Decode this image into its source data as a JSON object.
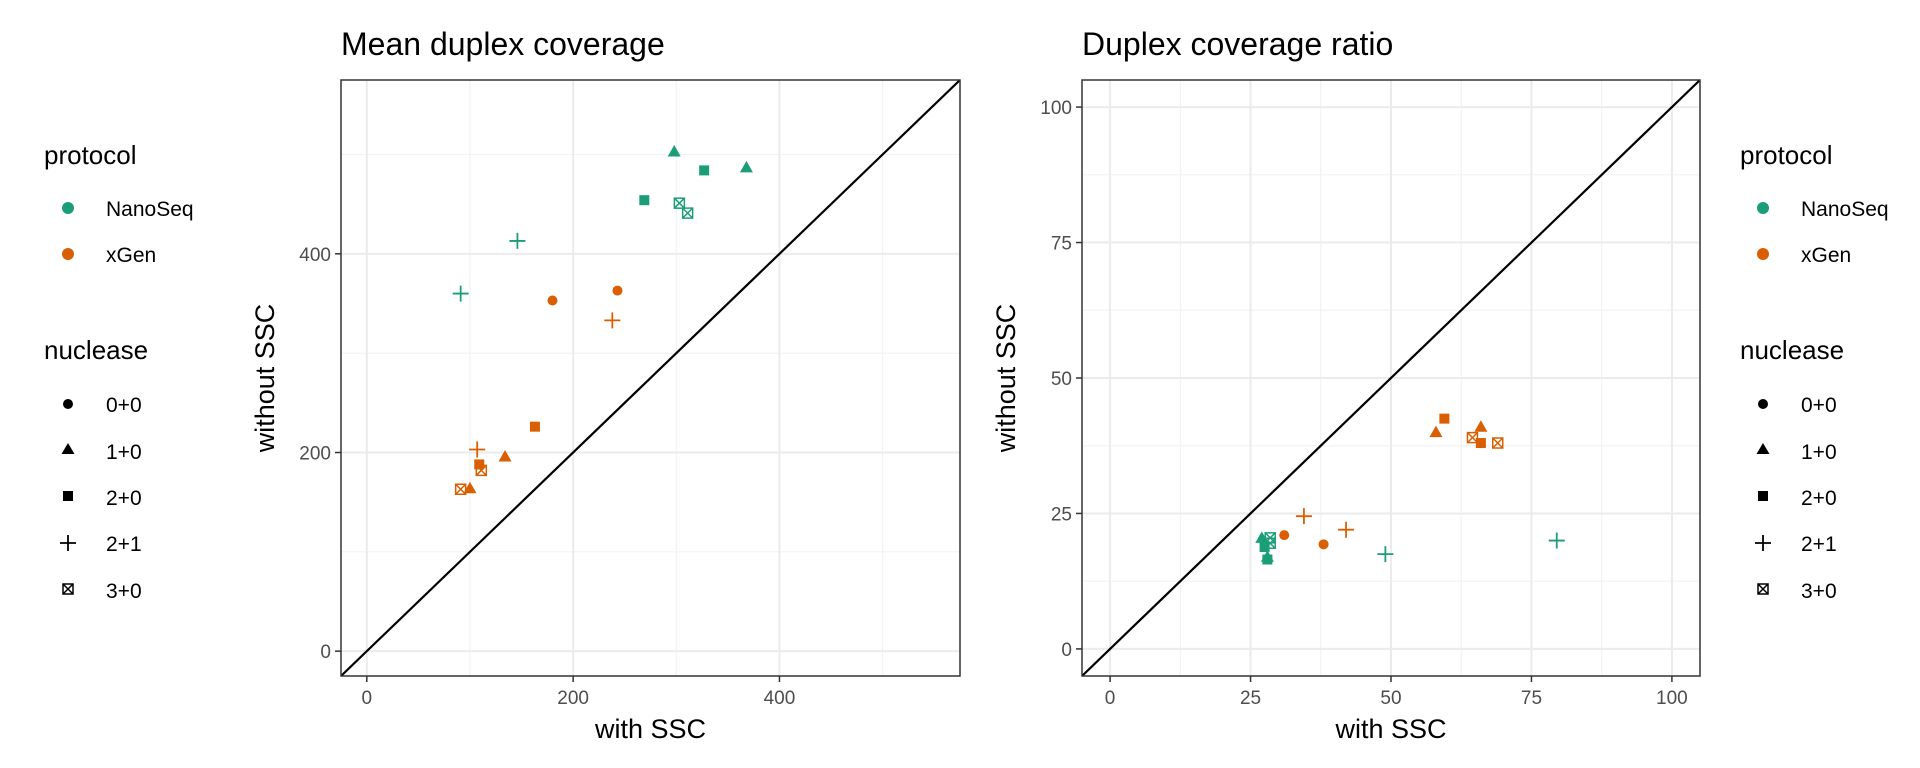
{
  "legend": {
    "protocol_title": "protocol",
    "protocol_items": [
      {
        "label": "NanoSeq",
        "color": "#1b9e77"
      },
      {
        "label": "xGen",
        "color": "#d95f02"
      }
    ],
    "nuclease_title": "nuclease",
    "nuclease_items": [
      {
        "label": "0+0",
        "shape": "circle"
      },
      {
        "label": "1+0",
        "shape": "triangle"
      },
      {
        "label": "2+0",
        "shape": "square"
      },
      {
        "label": "2+1",
        "shape": "plus"
      },
      {
        "label": "3+0",
        "shape": "square-cross"
      }
    ]
  },
  "chart_data": [
    {
      "type": "scatter",
      "title": "Mean duplex coverage",
      "xlabel": "with SSC",
      "ylabel": "without SSC",
      "xlim": [
        -25,
        575
      ],
      "ylim": [
        -25,
        575
      ],
      "xticks": [
        0,
        200,
        400
      ],
      "yticks": [
        0,
        200,
        400
      ],
      "grid": true,
      "reference_line": "y = x",
      "series": [
        {
          "name": "NanoSeq",
          "color": "#1b9e77",
          "points": [
            {
              "x": 298,
              "y": 503,
              "nuclease": "1+0"
            },
            {
              "x": 368,
              "y": 487,
              "nuclease": "1+0"
            },
            {
              "x": 327,
              "y": 484,
              "nuclease": "2+0"
            },
            {
              "x": 269,
              "y": 454,
              "nuclease": "2+0"
            },
            {
              "x": 303,
              "y": 451,
              "nuclease": "3+0"
            },
            {
              "x": 311,
              "y": 441,
              "nuclease": "3+0"
            },
            {
              "x": 146,
              "y": 413,
              "nuclease": "2+1"
            },
            {
              "x": 91,
              "y": 360,
              "nuclease": "2+1"
            }
          ]
        },
        {
          "name": "xGen",
          "color": "#d95f02",
          "points": [
            {
              "x": 243,
              "y": 363,
              "nuclease": "0+0"
            },
            {
              "x": 180,
              "y": 353,
              "nuclease": "0+0"
            },
            {
              "x": 238,
              "y": 333,
              "nuclease": "2+1"
            },
            {
              "x": 163,
              "y": 226,
              "nuclease": "2+0"
            },
            {
              "x": 107,
              "y": 203,
              "nuclease": "2+1"
            },
            {
              "x": 134,
              "y": 196,
              "nuclease": "1+0"
            },
            {
              "x": 109,
              "y": 188,
              "nuclease": "2+0"
            },
            {
              "x": 111,
              "y": 182,
              "nuclease": "3+0"
            },
            {
              "x": 100,
              "y": 164,
              "nuclease": "1+0"
            },
            {
              "x": 91,
              "y": 163,
              "nuclease": "3+0"
            }
          ]
        }
      ]
    },
    {
      "type": "scatter",
      "title": "Duplex coverage ratio",
      "xlabel": "with SSC",
      "ylabel": "without SSC",
      "xlim": [
        -5,
        105
      ],
      "ylim": [
        -5,
        105
      ],
      "xticks": [
        0,
        25,
        50,
        75,
        100
      ],
      "yticks": [
        0,
        25,
        50,
        75,
        100
      ],
      "grid": true,
      "reference_line": "y = x",
      "series": [
        {
          "name": "NanoSeq",
          "color": "#1b9e77",
          "points": [
            {
              "x": 27,
              "y": 20.5,
              "nuclease": "1+0"
            },
            {
              "x": 28.5,
              "y": 20.5,
              "nuclease": "3+0"
            },
            {
              "x": 27.5,
              "y": 18.8,
              "nuclease": "2+0"
            },
            {
              "x": 28.5,
              "y": 19.5,
              "nuclease": "3+0"
            },
            {
              "x": 28,
              "y": 17,
              "nuclease": "1+0"
            },
            {
              "x": 28,
              "y": 16.5,
              "nuclease": "2+0"
            },
            {
              "x": 49,
              "y": 17.5,
              "nuclease": "2+1"
            },
            {
              "x": 79.5,
              "y": 20,
              "nuclease": "2+1"
            }
          ]
        },
        {
          "name": "xGen",
          "color": "#d95f02",
          "points": [
            {
              "x": 31,
              "y": 21,
              "nuclease": "0+0"
            },
            {
              "x": 38,
              "y": 19.3,
              "nuclease": "0+0"
            },
            {
              "x": 34.5,
              "y": 24.5,
              "nuclease": "2+1"
            },
            {
              "x": 42,
              "y": 22,
              "nuclease": "2+1"
            },
            {
              "x": 58,
              "y": 40,
              "nuclease": "1+0"
            },
            {
              "x": 59.5,
              "y": 42.5,
              "nuclease": "2+0"
            },
            {
              "x": 66,
              "y": 41,
              "nuclease": "1+0"
            },
            {
              "x": 64.5,
              "y": 39,
              "nuclease": "3+0"
            },
            {
              "x": 66,
              "y": 38,
              "nuclease": "2+0"
            },
            {
              "x": 69,
              "y": 38,
              "nuclease": "3+0"
            }
          ]
        }
      ]
    }
  ]
}
